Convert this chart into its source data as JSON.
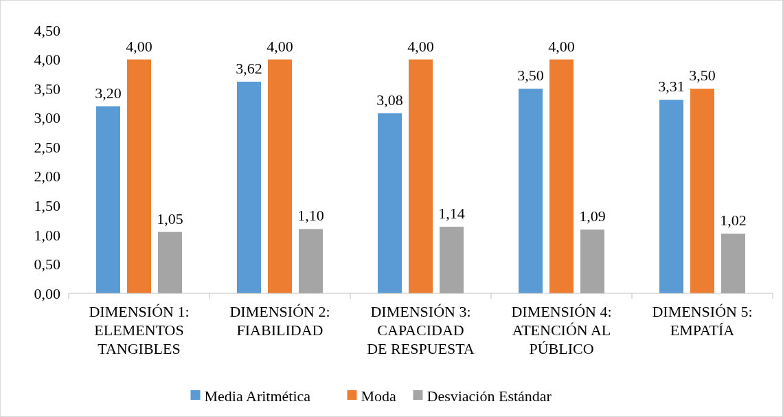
{
  "chart_data": {
    "type": "bar",
    "categories": [
      "DIMENSIÓN 1:\nELEMENTOS\nTANGIBLES",
      "DIMENSIÓN 2:\nFIABILIDAD",
      "DIMENSIÓN 3:\nCAPACIDAD\nDE RESPUESTA",
      "DIMENSIÓN 4:\nATENCIÓN AL\nPÚBLICO",
      "DIMENSIÓN 5:\nEMPATÍA"
    ],
    "series": [
      {
        "name": "Media Aritmética",
        "color": "#5b9bd5",
        "values": [
          3.2,
          3.62,
          3.08,
          3.5,
          3.31
        ],
        "value_labels": [
          "3,20",
          "3,62",
          "3,08",
          "3,50",
          "3,31"
        ]
      },
      {
        "name": "Moda",
        "color": "#ed7d31",
        "values": [
          4,
          4,
          4,
          4,
          3.5
        ],
        "value_labels": [
          "4,00",
          "4,00",
          "4,00",
          "4,00",
          "3,50"
        ]
      },
      {
        "name": "Desviación Estándar",
        "color": "#a5a5a5",
        "values": [
          1.05,
          1.1,
          1.14,
          1.09,
          1.02
        ],
        "value_labels": [
          "1,05",
          "1,10",
          "1,14",
          "1,09",
          "1,02"
        ]
      }
    ],
    "ylim": [
      0,
      4.5
    ],
    "yticks": [
      {
        "value": 0,
        "label": "0,00"
      },
      {
        "value": 0.5,
        "label": "0,50"
      },
      {
        "value": 1,
        "label": "1,00"
      },
      {
        "value": 1.5,
        "label": "1,50"
      },
      {
        "value": 2,
        "label": "2,00"
      },
      {
        "value": 2.5,
        "label": "2,50"
      },
      {
        "value": 3,
        "label": "3,00"
      },
      {
        "value": 3.5,
        "label": "3,50"
      },
      {
        "value": 4,
        "label": "4,00"
      },
      {
        "value": 4.5,
        "label": "4,50"
      }
    ],
    "grid": false,
    "legend": "bottom"
  }
}
